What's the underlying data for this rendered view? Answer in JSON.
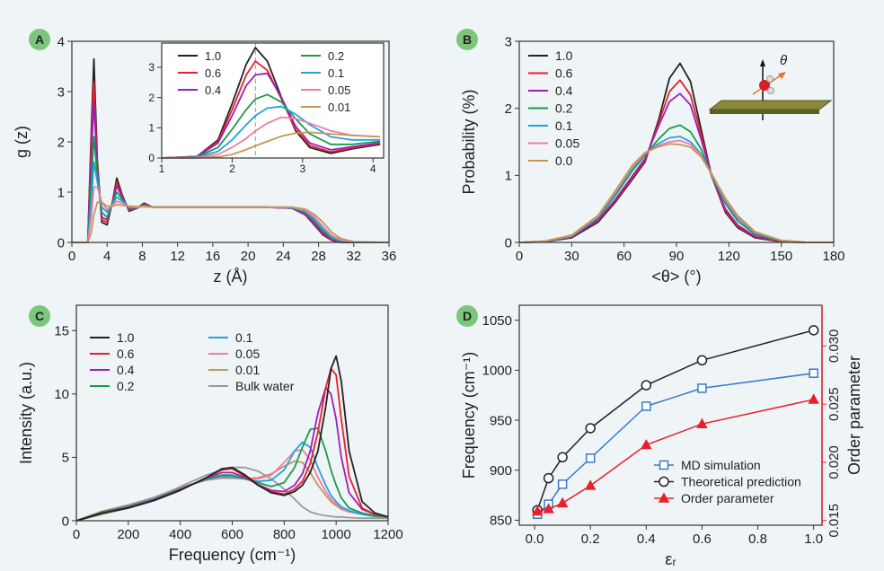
{
  "chart_data": [
    {
      "type": "line",
      "panel": "A",
      "xlabel": "z (Å)",
      "ylabel": "g (z)",
      "xlim": [
        0,
        36
      ],
      "xticks": [
        0,
        4,
        8,
        12,
        16,
        20,
        24,
        28,
        32,
        36
      ],
      "ylim": [
        0,
        4
      ],
      "yticks": [
        0,
        1,
        2,
        3,
        4
      ],
      "x": [
        0,
        1.8,
        2.2,
        2.5,
        2.9,
        3.4,
        4,
        4.6,
        5.1,
        5.7,
        6.5,
        7.4,
        8.2,
        9.2,
        11,
        16,
        22,
        25,
        26.5,
        27.5,
        28.5,
        29.5,
        30.5,
        32,
        36
      ],
      "series": [
        {
          "color": "#222222",
          "values": [
            0,
            0,
            2.2,
            3.65,
            1.6,
            0.4,
            0.35,
            0.8,
            1.28,
            0.95,
            0.62,
            0.68,
            0.78,
            0.7,
            0.7,
            0.7,
            0.7,
            0.68,
            0.55,
            0.35,
            0.15,
            0.04,
            0,
            0,
            0
          ]
        },
        {
          "color": "#e8202a",
          "values": [
            0,
            0,
            2.0,
            3.2,
            1.5,
            0.45,
            0.4,
            0.8,
            1.2,
            0.92,
            0.64,
            0.68,
            0.76,
            0.7,
            0.7,
            0.7,
            0.7,
            0.68,
            0.56,
            0.37,
            0.17,
            0.05,
            0.01,
            0,
            0
          ]
        },
        {
          "color": "#9a1fbf",
          "values": [
            0,
            0,
            1.7,
            2.8,
            1.4,
            0.5,
            0.45,
            0.8,
            1.12,
            0.9,
            0.66,
            0.68,
            0.75,
            0.7,
            0.7,
            0.7,
            0.7,
            0.68,
            0.57,
            0.39,
            0.19,
            0.06,
            0.01,
            0,
            0
          ]
        },
        {
          "color": "#1b9a4b",
          "values": [
            0,
            0,
            1.2,
            2.1,
            1.3,
            0.6,
            0.5,
            0.78,
            1.0,
            0.86,
            0.68,
            0.69,
            0.74,
            0.7,
            0.7,
            0.7,
            0.7,
            0.69,
            0.6,
            0.43,
            0.23,
            0.08,
            0.02,
            0,
            0
          ]
        },
        {
          "color": "#1fa5dc",
          "values": [
            0,
            0,
            0.8,
            1.6,
            1.2,
            0.7,
            0.6,
            0.76,
            0.9,
            0.82,
            0.7,
            0.7,
            0.73,
            0.7,
            0.7,
            0.7,
            0.7,
            0.69,
            0.62,
            0.47,
            0.27,
            0.11,
            0.03,
            0,
            0
          ]
        },
        {
          "color": "#f27ba9",
          "values": [
            0,
            0,
            0.5,
            1.1,
            1.1,
            0.8,
            0.65,
            0.74,
            0.82,
            0.78,
            0.71,
            0.7,
            0.72,
            0.7,
            0.7,
            0.7,
            0.7,
            0.7,
            0.64,
            0.51,
            0.32,
            0.14,
            0.05,
            0.01,
            0
          ]
        },
        {
          "color": "#c89558",
          "values": [
            0,
            0,
            0.2,
            0.55,
            0.8,
            0.8,
            0.72,
            0.72,
            0.75,
            0.74,
            0.72,
            0.71,
            0.71,
            0.7,
            0.7,
            0.7,
            0.7,
            0.7,
            0.66,
            0.56,
            0.4,
            0.2,
            0.08,
            0.01,
            0
          ]
        }
      ]
    },
    {
      "type": "line",
      "xlim": [
        1,
        4.15
      ],
      "xticks": [
        1,
        2,
        3,
        4
      ],
      "ylim": [
        0,
        3.8
      ],
      "yticks": [
        0,
        1,
        2,
        3
      ],
      "reference_x": 2.33,
      "x": [
        1,
        1.5,
        1.8,
        2.0,
        2.2,
        2.33,
        2.5,
        2.7,
        2.9,
        3.1,
        3.4,
        3.7,
        4.1
      ],
      "series": [
        {
          "name": "1.0",
          "color": "#222222",
          "values": [
            0,
            0.05,
            0.6,
            1.8,
            3.1,
            3.65,
            3.2,
            2.0,
            0.9,
            0.35,
            0.15,
            0.3,
            0.45
          ]
        },
        {
          "name": "0.6",
          "color": "#e8202a",
          "values": [
            0,
            0.05,
            0.55,
            1.6,
            2.75,
            3.2,
            2.9,
            1.95,
            0.95,
            0.42,
            0.2,
            0.33,
            0.48
          ]
        },
        {
          "name": "0.4",
          "color": "#9a1fbf",
          "values": [
            0,
            0.04,
            0.5,
            1.4,
            2.4,
            2.75,
            2.8,
            2.0,
            1.05,
            0.5,
            0.27,
            0.37,
            0.5
          ]
        },
        {
          "name": "0.2",
          "color": "#1b9a4b",
          "values": [
            0,
            0.03,
            0.35,
            0.95,
            1.6,
            1.95,
            2.1,
            1.85,
            1.3,
            0.8,
            0.45,
            0.45,
            0.55
          ]
        },
        {
          "name": "0.1",
          "color": "#1fa5dc",
          "values": [
            0,
            0.02,
            0.22,
            0.6,
            1.1,
            1.4,
            1.65,
            1.7,
            1.45,
            1.1,
            0.7,
            0.6,
            0.6
          ]
        },
        {
          "name": "0.05",
          "color": "#f27ba9",
          "values": [
            0,
            0.01,
            0.12,
            0.35,
            0.65,
            0.9,
            1.15,
            1.35,
            1.3,
            1.15,
            0.9,
            0.75,
            0.7
          ]
        },
        {
          "name": "0.01",
          "color": "#c89558",
          "values": [
            0,
            0,
            0.04,
            0.12,
            0.28,
            0.4,
            0.55,
            0.72,
            0.82,
            0.85,
            0.8,
            0.75,
            0.7
          ]
        }
      ]
    },
    {
      "type": "line",
      "panel": "B",
      "xlabel": "<θ> (°)",
      "ylabel": "Probability (%)",
      "annotation": "θ",
      "xlim": [
        0,
        180
      ],
      "xticks": [
        0,
        30,
        60,
        90,
        120,
        150,
        180
      ],
      "ylim": [
        0,
        3
      ],
      "yticks": [
        0,
        1,
        2,
        3
      ],
      "x": [
        0,
        15,
        30,
        45,
        55,
        65,
        72,
        80,
        86,
        92,
        98,
        104,
        110,
        118,
        125,
        135,
        150,
        165,
        180
      ],
      "series": [
        {
          "name": "1.0",
          "color": "#222222",
          "values": [
            0,
            0.01,
            0.07,
            0.3,
            0.6,
            0.95,
            1.2,
            1.85,
            2.45,
            2.67,
            2.4,
            1.7,
            1.0,
            0.45,
            0.22,
            0.07,
            0.01,
            0,
            0
          ]
        },
        {
          "name": "0.6",
          "color": "#e8202a",
          "values": [
            0,
            0.01,
            0.08,
            0.32,
            0.62,
            0.97,
            1.22,
            1.8,
            2.25,
            2.42,
            2.2,
            1.62,
            1.0,
            0.47,
            0.24,
            0.08,
            0.01,
            0,
            0
          ]
        },
        {
          "name": "0.4",
          "color": "#9a1fbf",
          "values": [
            0,
            0.01,
            0.08,
            0.33,
            0.64,
            1.0,
            1.25,
            1.75,
            2.1,
            2.22,
            2.05,
            1.55,
            1.0,
            0.5,
            0.26,
            0.09,
            0.02,
            0,
            0
          ]
        },
        {
          "name": "0.2",
          "color": "#1b9a4b",
          "values": [
            0,
            0.01,
            0.09,
            0.36,
            0.7,
            1.08,
            1.3,
            1.55,
            1.7,
            1.75,
            1.65,
            1.4,
            1.0,
            0.58,
            0.32,
            0.12,
            0.02,
            0,
            0
          ]
        },
        {
          "name": "0.1",
          "color": "#1fa5dc",
          "values": [
            0,
            0.02,
            0.1,
            0.38,
            0.73,
            1.12,
            1.32,
            1.48,
            1.56,
            1.58,
            1.5,
            1.32,
            1.02,
            0.62,
            0.36,
            0.14,
            0.03,
            0,
            0
          ]
        },
        {
          "name": "0.05",
          "color": "#f27ba9",
          "values": [
            0,
            0.02,
            0.1,
            0.39,
            0.75,
            1.14,
            1.33,
            1.45,
            1.5,
            1.52,
            1.46,
            1.3,
            1.02,
            0.64,
            0.38,
            0.15,
            0.03,
            0,
            0
          ]
        },
        {
          "name": "0.0",
          "color": "#c89558",
          "values": [
            0,
            0.02,
            0.11,
            0.4,
            0.77,
            1.16,
            1.34,
            1.43,
            1.47,
            1.46,
            1.42,
            1.28,
            1.03,
            0.66,
            0.4,
            0.16,
            0.03,
            0,
            0
          ]
        }
      ]
    },
    {
      "type": "line",
      "panel": "C",
      "xlabel": "Frequency (cm⁻¹)",
      "ylabel": "Intensity (a.u.)",
      "xlim": [
        0,
        1200
      ],
      "xticks": [
        0,
        200,
        400,
        600,
        800,
        1000,
        1200
      ],
      "ylim": [
        0,
        17
      ],
      "yticks": [
        0,
        5,
        10,
        15
      ],
      "x": [
        0,
        100,
        200,
        300,
        400,
        500,
        560,
        600,
        650,
        700,
        750,
        800,
        840,
        870,
        900,
        930,
        960,
        980,
        1000,
        1020,
        1050,
        1100,
        1150,
        1200
      ],
      "series": [
        {
          "name": "Bulk water",
          "color": "#9a9a9a",
          "values": [
            0,
            0.5,
            1.0,
            1.7,
            2.7,
            3.6,
            4.0,
            4.2,
            4.2,
            3.9,
            3.3,
            2.5,
            1.7,
            1.1,
            0.7,
            0.5,
            0.4,
            0.35,
            0.3,
            0.3,
            0.25,
            0.2,
            0.2,
            0.2
          ]
        },
        {
          "name": "0.01",
          "color": "#c89558",
          "values": [
            0,
            0.75,
            1.25,
            1.85,
            2.65,
            3.2,
            3.35,
            3.35,
            3.3,
            3.4,
            3.7,
            4.3,
            4.7,
            4.6,
            3.8,
            2.8,
            2.0,
            1.5,
            1.2,
            0.9,
            0.7,
            0.5,
            0.35,
            0.3
          ]
        },
        {
          "name": "0.05",
          "color": "#f27ba9",
          "values": [
            0,
            0.7,
            1.2,
            1.8,
            2.6,
            3.2,
            3.4,
            3.4,
            3.3,
            3.3,
            3.6,
            4.6,
            5.5,
            5.6,
            4.8,
            3.4,
            2.3,
            1.7,
            1.3,
            1.0,
            0.7,
            0.5,
            0.35,
            0.3
          ]
        },
        {
          "name": "0.1",
          "color": "#1fa5dc",
          "values": [
            0,
            0.7,
            1.15,
            1.75,
            2.55,
            3.25,
            3.5,
            3.45,
            3.3,
            3.1,
            3.2,
            4.0,
            5.5,
            6.2,
            5.8,
            4.2,
            2.8,
            2.0,
            1.5,
            1.1,
            0.8,
            0.5,
            0.35,
            0.3
          ]
        },
        {
          "name": "0.2",
          "color": "#1b9a4b",
          "values": [
            0,
            0.7,
            1.1,
            1.7,
            2.5,
            3.3,
            3.6,
            3.6,
            3.3,
            3.0,
            2.7,
            3.0,
            4.2,
            5.8,
            7.2,
            7.3,
            5.5,
            4.0,
            2.8,
            1.8,
            1.0,
            0.6,
            0.4,
            0.3
          ]
        },
        {
          "name": "0.4",
          "color": "#9a1fbf",
          "values": [
            0,
            0.6,
            1.05,
            1.65,
            2.45,
            3.35,
            3.8,
            3.8,
            3.4,
            2.85,
            2.4,
            2.3,
            2.8,
            3.7,
            5.5,
            8.5,
            10.5,
            10.0,
            8.0,
            5.0,
            2.2,
            0.9,
            0.5,
            0.3
          ]
        },
        {
          "name": "0.6",
          "color": "#e8202a",
          "values": [
            0,
            0.6,
            1.0,
            1.6,
            2.4,
            3.4,
            4.0,
            4.1,
            3.5,
            2.8,
            2.3,
            2.1,
            2.5,
            3.1,
            4.5,
            7.0,
            10.5,
            12.0,
            11.5,
            8.0,
            3.5,
            1.0,
            0.5,
            0.3
          ]
        },
        {
          "name": "1.0",
          "color": "#222222",
          "values": [
            0,
            0.6,
            1.0,
            1.6,
            2.4,
            3.4,
            4.1,
            4.2,
            3.6,
            2.8,
            2.2,
            2.0,
            2.3,
            2.8,
            3.8,
            5.5,
            9.0,
            12.0,
            13.0,
            11.0,
            5.5,
            1.5,
            0.6,
            0.3
          ]
        }
      ]
    },
    {
      "type": "line",
      "panel": "D",
      "xlabel": "εᵣ",
      "ylabel": "Frequency (cm⁻¹)",
      "y2label": "Order parameter",
      "xlim": [
        -0.055,
        1.03
      ],
      "xticks": [
        {
          "value": 0,
          "label": "0.0"
        },
        0.2,
        0.4,
        0.6,
        0.8,
        {
          "value": 1,
          "label": "1.0"
        }
      ],
      "ylim": [
        845,
        1065
      ],
      "yticks": [
        850,
        900,
        950,
        1000,
        1050
      ],
      "y2lim": [
        0.0146,
        0.0335
      ],
      "y2ticks": [
        0.015,
        {
          "value": 0.02,
          "label": "0.020"
        },
        0.025,
        {
          "value": 0.03,
          "label": "0.030"
        }
      ],
      "x": [
        0.01,
        0.05,
        0.1,
        0.2,
        0.4,
        0.6,
        1.0
      ],
      "series": [
        {
          "name": "MD simulation",
          "color": "#3a7ac8",
          "marker": "square",
          "values": [
            856,
            866,
            886,
            912,
            964,
            982,
            997
          ]
        },
        {
          "name": "Theoretical prediction",
          "color": "#222222",
          "marker": "circle",
          "values": [
            860,
            892,
            913,
            942,
            985,
            1010,
            1040
          ]
        },
        {
          "name": "Order parameter",
          "color": "#e8202a",
          "marker": "triangle",
          "axis": "y2",
          "values": [
            0.0158,
            0.016,
            0.0165,
            0.018,
            0.0215,
            0.0233,
            0.0254
          ]
        }
      ]
    }
  ]
}
